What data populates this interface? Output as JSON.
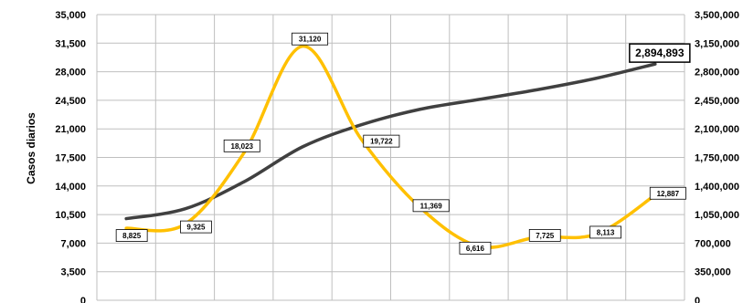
{
  "chart_data": {
    "type": "line",
    "ylabel": "Casos diarios",
    "ylim": [
      0,
      35000
    ],
    "y2lim": [
      0,
      3500000
    ],
    "y_ticks": [
      "0",
      "3,500",
      "7,000",
      "10,500",
      "14,000",
      "17,500",
      "21,000",
      "24,500",
      "28,000",
      "31,500",
      "35,000"
    ],
    "y2_ticks": [
      "0",
      "350,000",
      "700,000",
      "1,050,000",
      "1,400,000",
      "1,750,000",
      "2,100,000",
      "2,450,000",
      "2,800,000",
      "3,150,000",
      "3,500,000"
    ],
    "x": [
      0,
      1,
      2,
      3,
      4,
      5,
      6,
      7,
      8,
      9
    ],
    "grid": true,
    "legend": "none",
    "series": [
      {
        "axis": "left",
        "color": "#ffc000",
        "values": [
          8825,
          9325,
          18023,
          31120,
          19722,
          11369,
          6616,
          7725,
          8113,
          12887
        ],
        "labels": [
          "8,825",
          "9,325",
          "18,023",
          "31,120",
          "19,722",
          "11,369",
          "6,616",
          "7,725",
          "8,113",
          "12,887"
        ]
      },
      {
        "axis": "right",
        "color": "#404040",
        "values": [
          1000000,
          1120000,
          1450000,
          1880000,
          2150000,
          2340000,
          2460000,
          2580000,
          2720000,
          2894893
        ],
        "end_label": "2,894,893"
      }
    ]
  }
}
